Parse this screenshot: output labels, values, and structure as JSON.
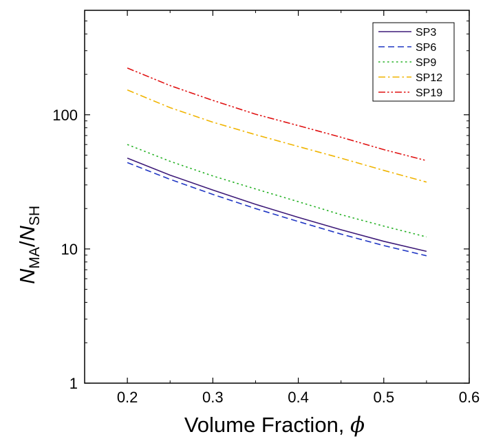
{
  "chart_data": {
    "type": "line",
    "xlabel": "Volume Fraction, ",
    "xlabel_symbol": "ϕ",
    "ylabel": {
      "numerator": "N",
      "numerator_sub": "MA",
      "separator": "/",
      "denominator": "N",
      "denominator_sub": "SH"
    },
    "y_scale": "log",
    "xlim": [
      0.15,
      0.6
    ],
    "ylim": [
      1,
      600
    ],
    "x_ticks": [
      0.2,
      0.3,
      0.4,
      0.5,
      0.6
    ],
    "x_tick_labels": [
      "0.2",
      "0.3",
      "0.4",
      "0.5",
      "0.6"
    ],
    "y_ticks": [
      1,
      10,
      100
    ],
    "y_tick_labels": [
      "1",
      "10",
      "100"
    ],
    "grid": false,
    "legend_position": "top-right",
    "x": [
      0.2,
      0.25,
      0.3,
      0.35,
      0.4,
      0.45,
      0.5,
      0.55
    ],
    "series": [
      {
        "name": "SP3",
        "color": "#3d1a78",
        "dash": "solid",
        "values": [
          47.5,
          35.5,
          27.5,
          21.5,
          17.2,
          13.9,
          11.4,
          9.6
        ]
      },
      {
        "name": "SP6",
        "color": "#1f36c4",
        "dash": "dash",
        "values": [
          44,
          33,
          25.5,
          20,
          16,
          12.9,
          10.6,
          8.9
        ]
      },
      {
        "name": "SP9",
        "color": "#22b022",
        "dash": "dot",
        "values": [
          60,
          45,
          35,
          28,
          22.5,
          18,
          14.8,
          12.3
        ]
      },
      {
        "name": "SP12",
        "color": "#f0b400",
        "dash": "dashdot",
        "values": [
          153,
          113,
          88,
          71,
          58,
          47.5,
          38.5,
          31.5
        ]
      },
      {
        "name": "SP19",
        "color": "#e01010",
        "dash": "dashdotdot",
        "values": [
          223,
          165,
          128,
          101,
          83,
          68,
          55,
          45.5
        ]
      }
    ]
  }
}
